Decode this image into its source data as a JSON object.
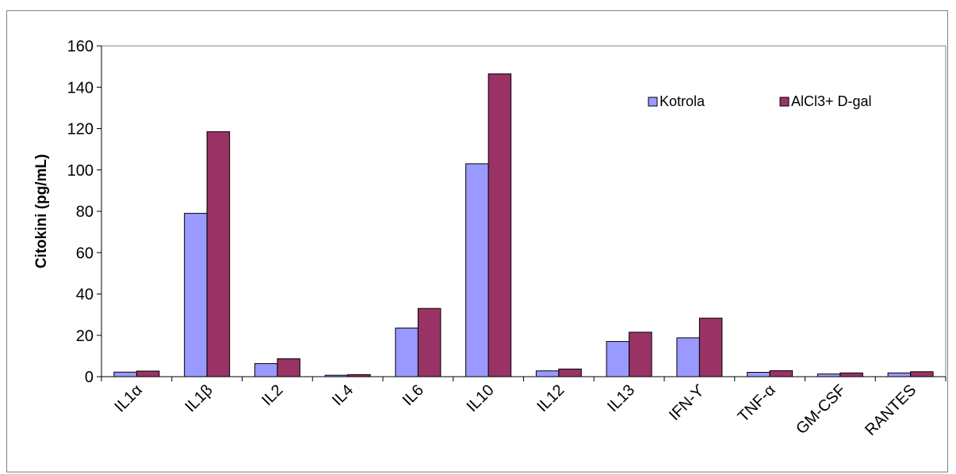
{
  "chart_data": {
    "type": "bar",
    "title": "",
    "xlabel": "",
    "ylabel": "Citokini (pg/mL)",
    "ylim": [
      0,
      160
    ],
    "yticks": [
      0,
      20,
      40,
      60,
      80,
      100,
      120,
      140,
      160
    ],
    "grid": false,
    "legend_position": "top-right",
    "categories": [
      "IL1α",
      "IL1β",
      "IL2",
      "IL4",
      "IL6",
      "IL10",
      "IL12",
      "IL13",
      "IFN-Ƴ",
      "TNF-α",
      "GM-CSF",
      "RANTES"
    ],
    "series": [
      {
        "name": "Kotrola",
        "color": "#9999ff",
        "values": [
          2.2,
          79,
          6.3,
          0.7,
          23.5,
          103,
          2.8,
          17,
          18.8,
          2.1,
          1.3,
          1.8
        ]
      },
      {
        "name": "AlCl3+ D-gal",
        "color": "#993366",
        "values": [
          2.7,
          118.5,
          8.7,
          1.0,
          33,
          146.5,
          3.7,
          21.5,
          28.3,
          2.9,
          1.8,
          2.4
        ]
      }
    ]
  }
}
